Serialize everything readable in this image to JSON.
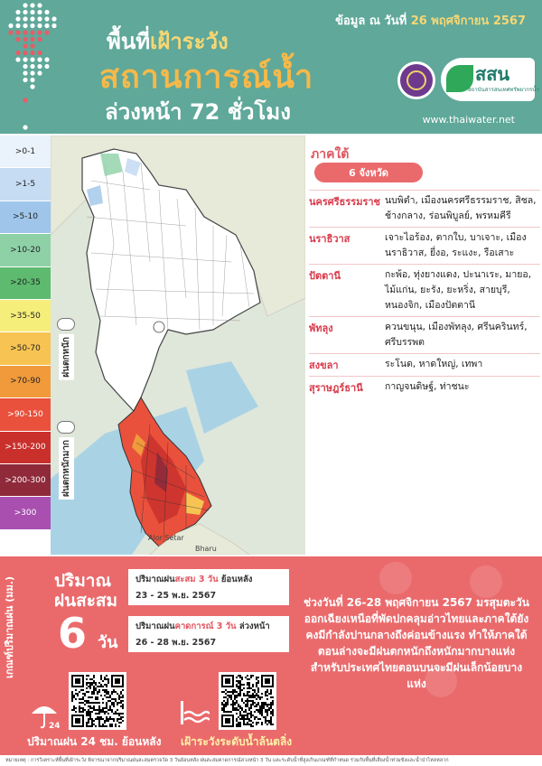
{
  "header": {
    "date_prefix": "ข้อมูล ณ วันที่ ",
    "date_value": "26 พฤศจิกายน 2567",
    "title_line1_a": "พื้นที่",
    "title_line1_b": "เฝ้าระวัง",
    "title_line2": "สถานการณ์น้ำ",
    "title_line3": "ล่วงหน้า 72 ชั่วโมง",
    "logo2_text": "สสน",
    "logo2_sub": "สถาบันสารสนเทศทรัพยากรน้ำ",
    "url": "www.thaiwater.net"
  },
  "legend": [
    {
      "label": ">0-1",
      "color": "#eaf2fb"
    },
    {
      "label": ">1-5",
      "color": "#c6dcf3"
    },
    {
      "label": ">5-10",
      "color": "#9fc6ea"
    },
    {
      "label": ">10-20",
      "color": "#8fd1a7"
    },
    {
      "label": ">20-35",
      "color": "#5dba6e"
    },
    {
      "label": ">35-50",
      "color": "#f6ee7a"
    },
    {
      "label": ">50-70",
      "color": "#f7c453"
    },
    {
      "label": ">70-90",
      "color": "#f09a3c"
    },
    {
      "label": ">90-150",
      "color": "#e9513c"
    },
    {
      "label": ">150-200",
      "color": "#c9302c"
    },
    {
      "label": ">200-300",
      "color": "#8f2a3b"
    },
    {
      "label": ">300",
      "color": "#a84fb0"
    }
  ],
  "map": {
    "label_light": "ฝนตกหนัก",
    "label_heavy": "ฝนตกหนักมาก",
    "place_alor": "Alor Setar",
    "place_bharu": "Bharu"
  },
  "region": {
    "title": "ภาคใต้",
    "count": "6 จังหวัด",
    "provinces": [
      {
        "name": "นครศรีธรรมราช",
        "districts": "นบพิตำ, เมืองนครศรีธรรมราช, สิชล, ช้างกลาง, ร่อนพิบูลย์, พรหมคีรี"
      },
      {
        "name": "นราธิวาส",
        "districts": "เจาะไอร้อง, ตากใบ, บาเจาะ, เมืองนราธิวาส, ยี่งอ, ระแงะ, รือเสาะ"
      },
      {
        "name": "ปัตตานี",
        "districts": "กะพ้อ, ทุ่งยางแดง, ปะนาเระ, มายอ, ไม้แก่น, ยะรัง, ยะหริ่ง, สายบุรี, หนองจิก, เมืองปัตตานี"
      },
      {
        "name": "พัทลุง",
        "districts": "ควนขนุน, เมืองพัทลุง, ศรีนครินทร์, ศรีบรรพต"
      },
      {
        "name": "สงขลา",
        "districts": "ระโนด, หาดใหญ่, เทพา"
      },
      {
        "name": "สุราษฎร์ธานี",
        "districts": "กาญจนดิษฐ์, ท่าชนะ"
      }
    ]
  },
  "bottom": {
    "vertical_label": "เกณฑ์ปริมาณฝน (มม.)",
    "acc_line1": "ปริมาณ",
    "acc_line2": "ฝนสะสม",
    "acc_number": "6",
    "acc_unit": "วัน",
    "card1_a": "ปริมาณฝน",
    "card1_b": "สะสม 3 วัน",
    "card1_c": " ย้อนหลัง",
    "card1_date": "23 - 25 พ.ย. 2567",
    "card2_a": "ปริมาณฝน",
    "card2_b": "คาดการณ์ 3 วัน",
    "card2_c": " ล่วงหน้า",
    "card2_date": "26 - 28 พ.ย. 2567",
    "summary": "ช่วงวันที่ 26-28 พฤศจิกายน 2567 มรสุมตะวันออกเฉียงเหนือที่พัดปกคลุมอ่าวไทยและภาคใต้ยังคงมีกำลังปานกลางถึงค่อนข้างแรง ทำให้ภาคใต้ตอนล่างจะมีฝนตกหนักถึงหนักมากบางแห่ง สำหรับประเทศไทยตอนบนจะมีฝนเล็กน้อยบางแห่ง",
    "umbrella_badge": "24",
    "caption1": "ปริมาณฝน 24 ชม. ย้อนหลัง",
    "caption2": "เฝ้าระวังระดับน้ำล้นตลิ่ง",
    "footnote": "หมายเหตุ : การวิเคราะห์พื้นที่เฝ้าระวัง พิจารณาจากปริมาณฝนสะสมตรวจวัด 3 วันย้อนหลัง ฝนสะสมคาดการณ์ล่วงหน้า 3 วัน และระดับน้ำที่สูงเกินเกณฑ์ที่กำหนด ร่วมกับพื้นที่เสี่ยงน้ำท่วมขังและน้ำป่าไหลหลาก"
  }
}
